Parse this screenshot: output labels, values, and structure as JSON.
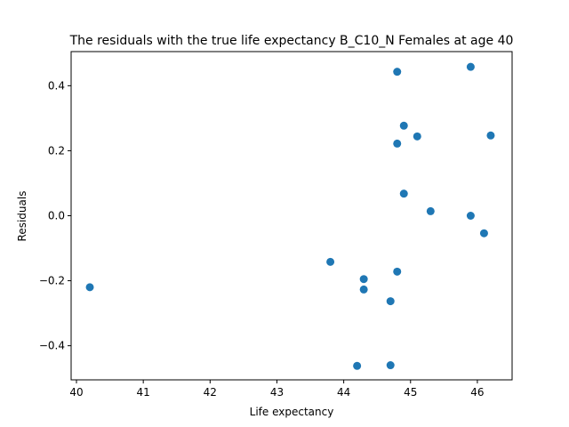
{
  "chart_data": {
    "type": "scatter",
    "title": "The residuals with the true life expectancy B_C10_N Females at age 40",
    "xlabel": "Life expectancy",
    "ylabel": "Residuals",
    "xlim": [
      39.92,
      46.52
    ],
    "ylim": [
      -0.505,
      0.505
    ],
    "xticks": [
      40,
      41,
      42,
      43,
      44,
      45,
      46
    ],
    "yticks": [
      -0.4,
      -0.2,
      0.0,
      0.2,
      0.4
    ],
    "xtick_labels": [
      "40",
      "41",
      "42",
      "43",
      "44",
      "45",
      "46"
    ],
    "ytick_labels": [
      "−0.4",
      "−0.2",
      "0.0",
      "0.2",
      "0.4"
    ],
    "grid": false,
    "marker_color": "#1f77b4",
    "points": [
      {
        "x": 40.2,
        "y": -0.22
      },
      {
        "x": 43.8,
        "y": -0.142
      },
      {
        "x": 44.2,
        "y": -0.462
      },
      {
        "x": 44.3,
        "y": -0.195
      },
      {
        "x": 44.3,
        "y": -0.227
      },
      {
        "x": 44.7,
        "y": -0.263
      },
      {
        "x": 44.7,
        "y": -0.46
      },
      {
        "x": 44.8,
        "y": 0.443
      },
      {
        "x": 44.8,
        "y": 0.222
      },
      {
        "x": 44.8,
        "y": -0.172
      },
      {
        "x": 44.9,
        "y": 0.277
      },
      {
        "x": 44.9,
        "y": 0.068
      },
      {
        "x": 45.1,
        "y": 0.244
      },
      {
        "x": 45.3,
        "y": 0.014
      },
      {
        "x": 45.9,
        "y": 0.458
      },
      {
        "x": 45.9,
        "y": 0.0
      },
      {
        "x": 46.1,
        "y": -0.054
      },
      {
        "x": 46.2,
        "y": 0.247
      }
    ]
  }
}
